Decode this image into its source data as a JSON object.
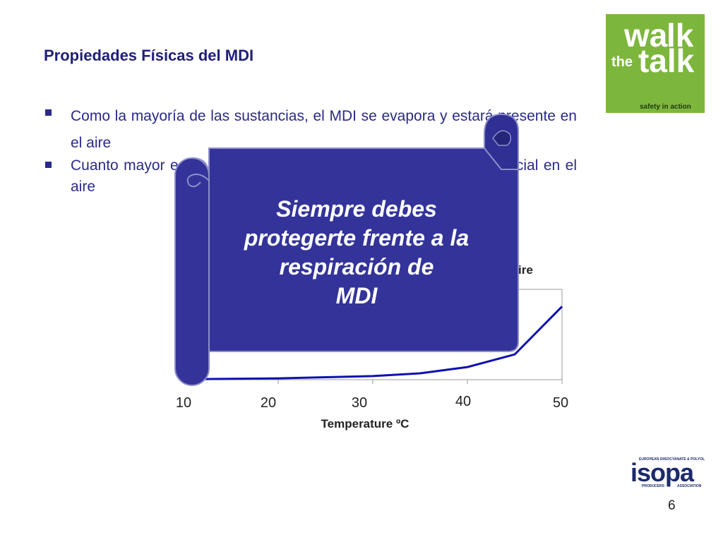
{
  "slide": {
    "title": "Propiedades Físicas del MDI",
    "page_number": "6"
  },
  "bullets": [
    {
      "text": "Como la mayoría de las sustancias, el  MDI se evapora y estará presente en el aire"
    },
    {
      "text": "Cuanto mayor es la temperatura, mayor es la concentración potencial en el aire"
    }
  ],
  "callout": {
    "lines": [
      "Siempre debes",
      "protegerte frente a la",
      "respiración de",
      "MDI"
    ]
  },
  "logos": {
    "walk_the_talk": {
      "line1": "wa",
      "line1b": "lk",
      "the": "the",
      "talk": "talk",
      "tagline": "safety in action"
    },
    "isopa": {
      "name": "isopa",
      "top_text": "EUROPEAN DIISOCYANATE & POLYOL",
      "bottom_left": "PRODUCERS",
      "bottom_right": "ASSOCIATION"
    }
  },
  "colors": {
    "title": "#1f1f7a",
    "scroll_fill": "#33339a",
    "curve": "#1010b0",
    "walk_green": "#7db63c",
    "isopa_navy": "#1c2a6b"
  },
  "chart_data": {
    "type": "line",
    "title": "",
    "title_visible_fragment": "ire",
    "xlabel": "Temperature ºC",
    "ylabel": "",
    "x_ticks": [
      "10",
      "20",
      "30",
      "40",
      "50"
    ],
    "xlim": [
      10,
      50
    ],
    "series": [
      {
        "x": [
          10,
          20,
          30,
          35,
          40,
          45,
          50
        ],
        "y": [
          0.5,
          1.5,
          4,
          7,
          14,
          28,
          81
        ]
      }
    ],
    "ylim": [
      0,
      100
    ]
  }
}
